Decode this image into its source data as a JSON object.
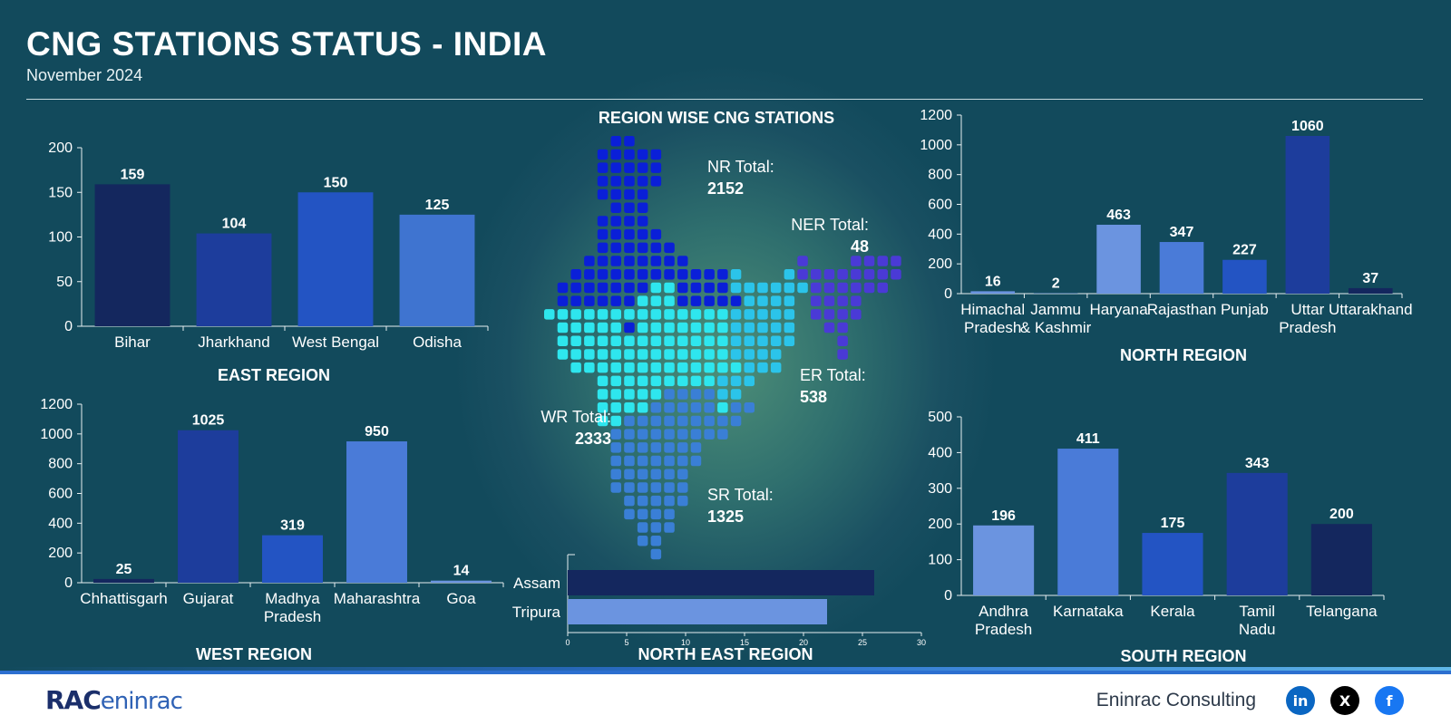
{
  "header": {
    "title": "CNG STATIONS STATUS - INDIA",
    "subtitle": "November 2024"
  },
  "map": {
    "title": "REGION WISE CNG STATIONS",
    "labels": {
      "nr": {
        "label": "NR Total:",
        "value": "2152"
      },
      "ner": {
        "label": "NER Total:",
        "value": "48"
      },
      "er": {
        "label": "ER Total:",
        "value": "538"
      },
      "wr": {
        "label": "WR Total:",
        "value": "2333"
      },
      "sr": {
        "label": "SR Total:",
        "value": "1325"
      }
    },
    "colors": {
      "north": "#0a1fd8",
      "west": "#2ee6ee",
      "south": "#3a7fd6",
      "east": "#2bc4ea",
      "north_east": "#4a3ad6"
    }
  },
  "chart_data": [
    {
      "id": "east",
      "type": "bar",
      "title": "EAST REGION",
      "categories": [
        "Bihar",
        "Jharkhand",
        "West Bengal",
        "Odisha"
      ],
      "values": [
        159,
        104,
        150,
        125
      ],
      "yticks": [
        0,
        50,
        100,
        150,
        200
      ],
      "ylim": [
        0,
        200
      ],
      "colors": [
        "#14275e",
        "#1d3d9c",
        "#2354c3",
        "#3f74d0"
      ],
      "grid": false
    },
    {
      "id": "north",
      "type": "bar",
      "title": "NORTH REGION",
      "categories": [
        "Himachal Pradesh",
        "Jammu & Kashmir",
        "Haryana",
        "Rajasthan",
        "Punjab",
        "Uttar Pradesh",
        "Uttarakhand"
      ],
      "values": [
        16,
        2,
        463,
        347,
        227,
        1060,
        37
      ],
      "yticks": [
        0,
        200,
        400,
        600,
        800,
        1000,
        1200
      ],
      "ylim": [
        0,
        1200
      ],
      "colors": [
        "#6b94e0",
        "#4a7bd8",
        "#6b94e0",
        "#4a7bd8",
        "#2354c3",
        "#1d3d9c",
        "#14275e"
      ],
      "grid": false
    },
    {
      "id": "west",
      "type": "bar",
      "title": "WEST REGION",
      "categories": [
        "Chhattisgarh",
        "Gujarat",
        "Madhya Pradesh",
        "Maharashtra",
        "Goa"
      ],
      "values": [
        25,
        1025,
        319,
        950,
        14
      ],
      "yticks": [
        0,
        200,
        400,
        600,
        800,
        1000,
        1200
      ],
      "ylim": [
        0,
        1200
      ],
      "colors": [
        "#14275e",
        "#1d3d9c",
        "#2354c3",
        "#4a7bd8",
        "#6b94e0"
      ],
      "grid": false
    },
    {
      "id": "south",
      "type": "bar",
      "title": "SOUTH REGION",
      "categories": [
        "Andhra Pradesh",
        "Karnataka",
        "Kerala",
        "Tamil Nadu",
        "Telangana"
      ],
      "values": [
        196,
        411,
        175,
        343,
        200
      ],
      "yticks": [
        0,
        100,
        200,
        300,
        400,
        500
      ],
      "ylim": [
        0,
        500
      ],
      "colors": [
        "#6b94e0",
        "#4a7bd8",
        "#2354c3",
        "#1d3d9c",
        "#14275e"
      ],
      "grid": false
    },
    {
      "id": "north_east",
      "type": "bar",
      "orientation": "horizontal",
      "title": "NORTH EAST REGION",
      "categories": [
        "Assam",
        "Tripura"
      ],
      "values": [
        26,
        22
      ],
      "xticks": [
        0,
        5,
        10,
        15,
        20,
        25,
        30
      ],
      "xlim": [
        0,
        30
      ],
      "colors": [
        "#14275e",
        "#6b94e0"
      ],
      "grid": false
    }
  ],
  "footer": {
    "logo_main": "RAC",
    "logo_tail": "eninrac",
    "company": "Eninrac Consulting",
    "social": [
      "in",
      "X",
      "f"
    ],
    "social_icons": [
      "linkedin-icon",
      "x-icon",
      "facebook-icon"
    ],
    "social_colors": [
      "#0a66c2",
      "#000000",
      "#1877f2"
    ]
  }
}
